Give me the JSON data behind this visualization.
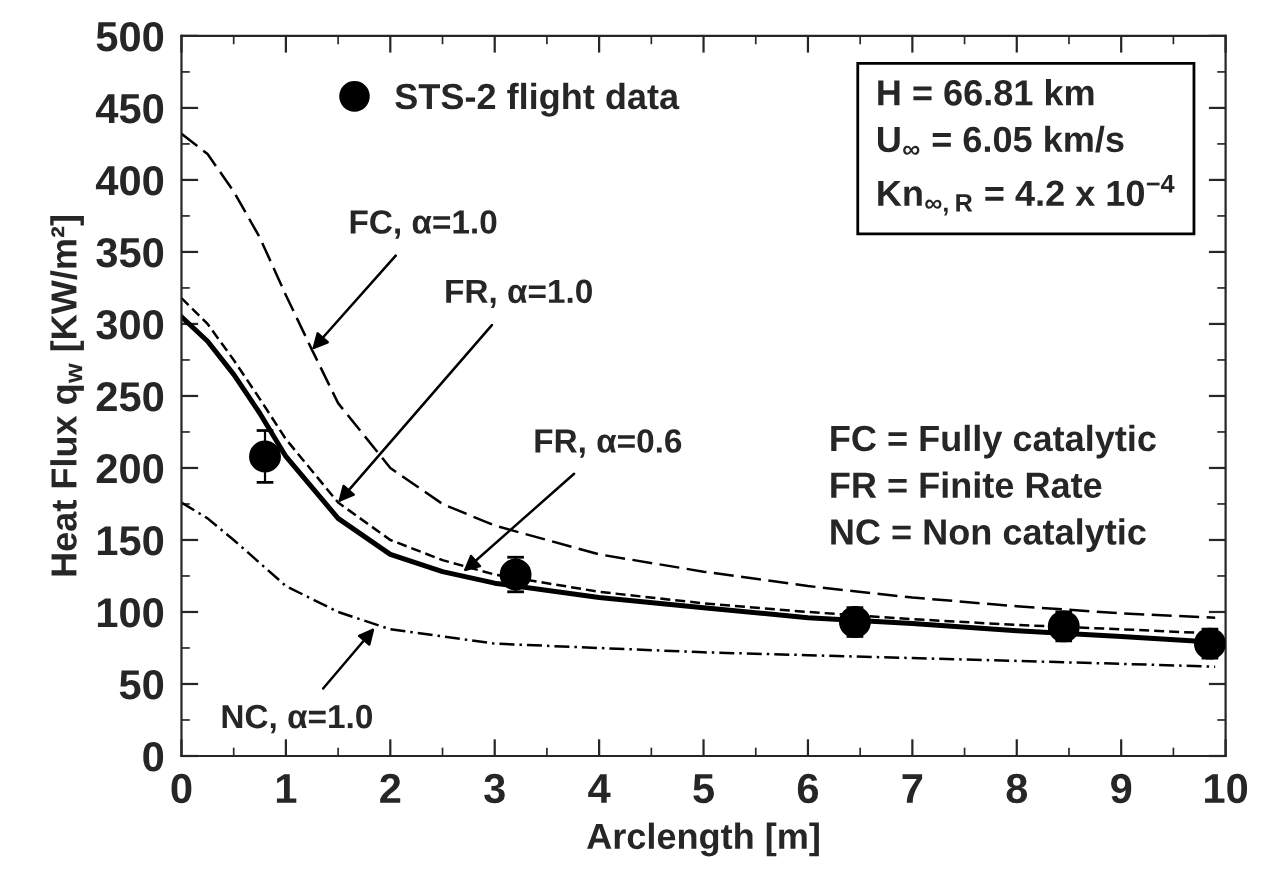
{
  "chart_data": {
    "type": "line",
    "xlabel": "Arclength [m]",
    "ylabel": "Heat Flux q$_{w}$ [KW/m²]",
    "xlim": [
      0,
      10
    ],
    "xticks": [
      0,
      1,
      2,
      3,
      4,
      5,
      6,
      7,
      8,
      9,
      10
    ],
    "ylim": [
      0,
      500
    ],
    "yticks": [
      0,
      50,
      100,
      150,
      200,
      250,
      300,
      350,
      400,
      450,
      500
    ],
    "grid": false,
    "legend": "top left",
    "series": [
      {
        "color": "#000000",
        "line_style": "dashed",
        "x": [
          0,
          0.25,
          0.5,
          0.75,
          1,
          1.25,
          1.5,
          2,
          2.5,
          3,
          4,
          5,
          6,
          7,
          8,
          9,
          9.9
        ],
        "values": [
          432,
          418,
          392,
          360,
          320,
          282,
          245,
          200,
          175,
          160,
          140,
          128,
          118,
          110,
          104,
          99,
          96
        ]
      },
      {
        "color": "#000000",
        "line_style": "dashed",
        "x": [
          0,
          0.25,
          0.5,
          0.75,
          1,
          1.5,
          2,
          2.5,
          3,
          4,
          5,
          6,
          7,
          8,
          9,
          9.9
        ],
        "values": [
          318,
          300,
          275,
          248,
          220,
          176,
          150,
          136,
          126,
          114,
          106,
          100,
          95,
          91,
          88,
          85
        ]
      },
      {
        "color": "#000000",
        "line_style": "solid",
        "x": [
          0,
          0.25,
          0.5,
          0.75,
          1,
          1.5,
          2,
          2.5,
          3,
          4,
          5,
          6,
          7,
          8,
          9,
          9.9
        ],
        "values": [
          305,
          288,
          265,
          238,
          208,
          165,
          140,
          128,
          120,
          110,
          103,
          96,
          92,
          87,
          83,
          79
        ]
      },
      {
        "color": "#000000",
        "line_style": "dotted",
        "x": [
          0,
          0.25,
          0.5,
          0.75,
          1,
          1.5,
          2,
          3,
          4,
          5,
          6,
          7,
          8,
          9,
          9.9
        ],
        "values": [
          176,
          165,
          150,
          134,
          118,
          100,
          88,
          78,
          75,
          72,
          70,
          68,
          66,
          64,
          62
        ]
      },
      {
        "type": "scatter",
        "name": "STS-2 flight data",
        "color": "#000000",
        "marker": "circle",
        "x": [
          0.8,
          3.2,
          6.45,
          8.45,
          9.85
        ],
        "values": [
          208,
          126,
          93,
          90,
          78
        ],
        "errors": [
          18,
          12,
          10,
          10,
          10
        ]
      }
    ],
    "annotations": [
      {
        "text": "FC, α=1.0",
        "x": 1.25,
        "y": 282
      },
      {
        "text": "FR, α=1.0",
        "x": 1.5,
        "y": 176
      },
      {
        "text": "FR, α=0.6",
        "x": 2.7,
        "y": 128
      },
      {
        "text": "NC, α=1.0",
        "x": 1.85,
        "y": 89
      },
      "H = 66.81 km\nU$_{∞}$ = 6.05 km/s\nKn$_{∞,R}$ = 4.2 x 10$^{−4}$",
      "FC = Fully catalytic\nFR = Finite Rate\nNC = Non catalytic"
    ]
  }
}
